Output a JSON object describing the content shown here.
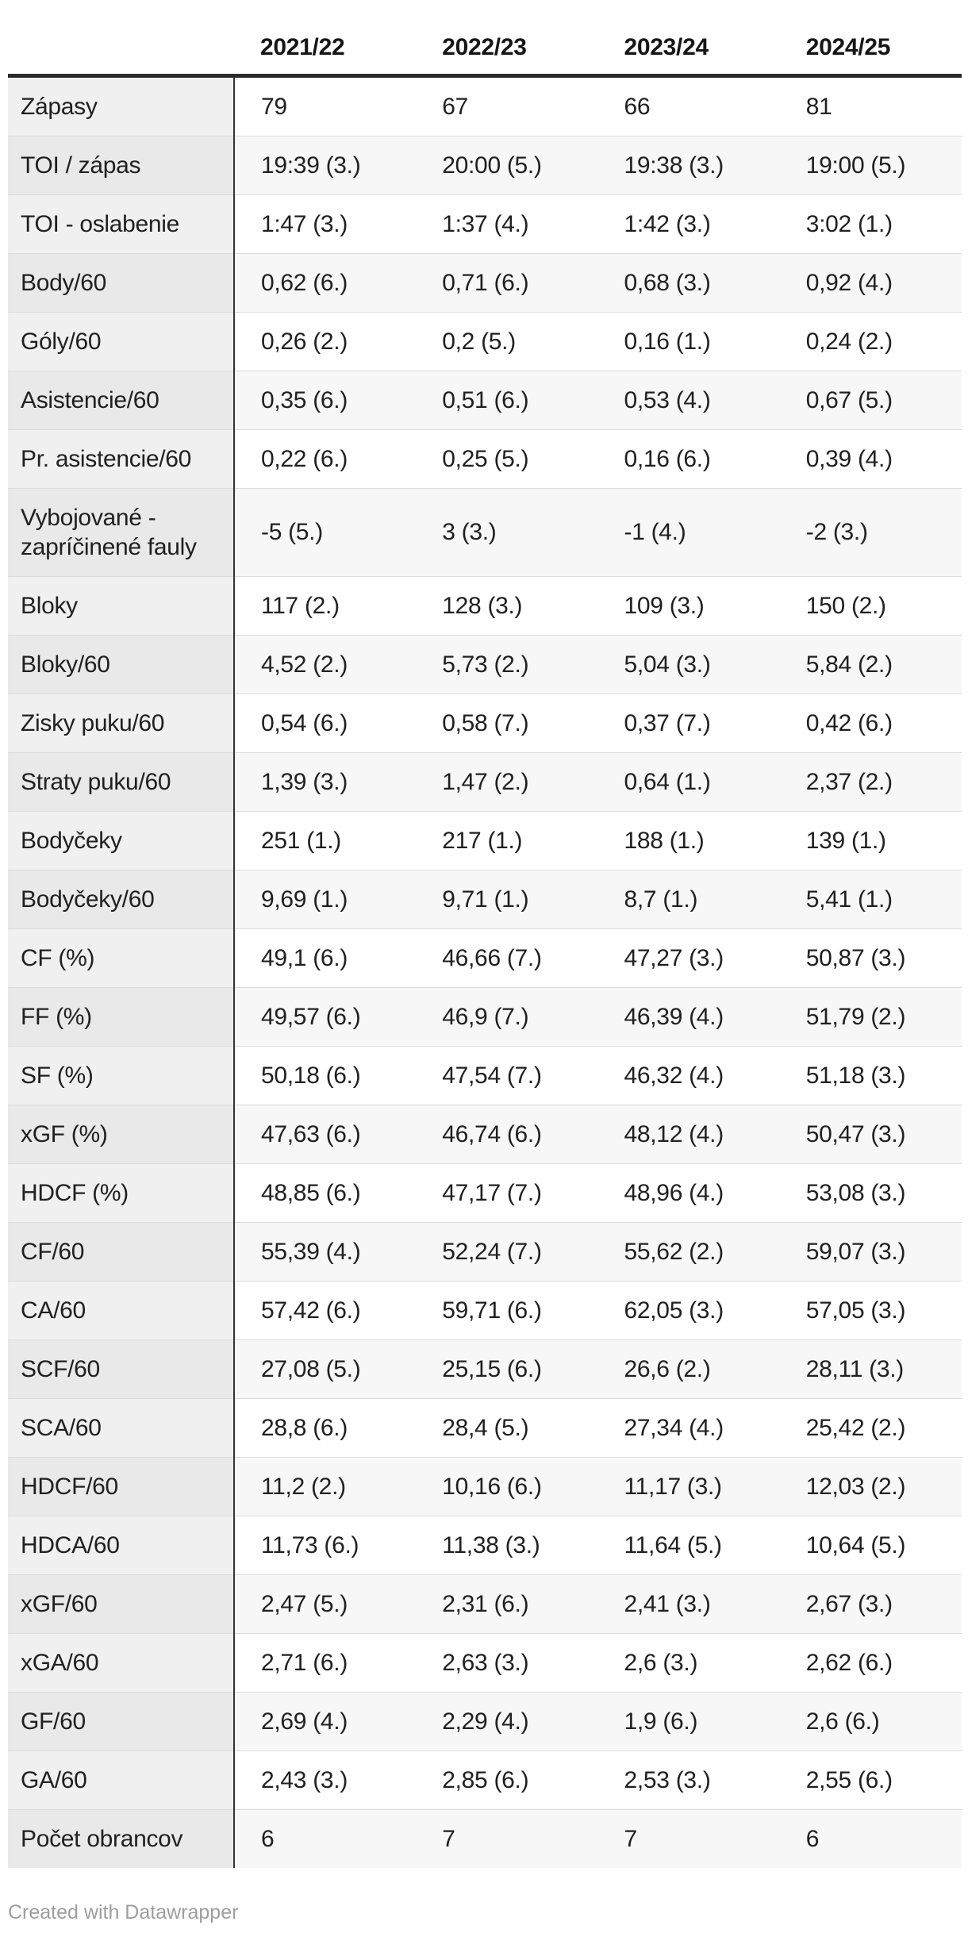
{
  "chart_data": {
    "type": "table",
    "title": "",
    "columns": [
      "2021/22",
      "2022/23",
      "2023/24",
      "2024/25"
    ],
    "rows": [
      {
        "label": "Zápasy",
        "values": [
          "79",
          "67",
          "66",
          "81"
        ]
      },
      {
        "label": "TOI / zápas",
        "values": [
          "19:39 (3.)",
          "20:00 (5.)",
          "19:38 (3.)",
          "19:00 (5.)"
        ]
      },
      {
        "label": "TOI - oslabenie",
        "values": [
          "1:47 (3.)",
          "1:37 (4.)",
          "1:42 (3.)",
          "3:02 (1.)"
        ]
      },
      {
        "label": "Body/60",
        "values": [
          "0,62 (6.)",
          "0,71 (6.)",
          "0,68 (3.)",
          "0,92 (4.)"
        ]
      },
      {
        "label": "Góly/60",
        "values": [
          "0,26 (2.)",
          "0,2 (5.)",
          "0,16 (1.)",
          "0,24 (2.)"
        ]
      },
      {
        "label": "Asistencie/60",
        "values": [
          "0,35 (6.)",
          "0,51 (6.)",
          "0,53 (4.)",
          "0,67 (5.)"
        ]
      },
      {
        "label": "Pr. asistencie/60",
        "values": [
          "0,22 (6.)",
          "0,25 (5.)",
          "0,16 (6.)",
          "0,39 (4.)"
        ]
      },
      {
        "label": "Vybojované - zapríčinené fauly",
        "values": [
          "-5 (5.)",
          "3 (3.)",
          "-1 (4.)",
          "-2 (3.)"
        ]
      },
      {
        "label": "Bloky",
        "values": [
          "117 (2.)",
          "128 (3.)",
          "109 (3.)",
          "150 (2.)"
        ]
      },
      {
        "label": "Bloky/60",
        "values": [
          "4,52 (2.)",
          "5,73 (2.)",
          "5,04 (3.)",
          "5,84 (2.)"
        ]
      },
      {
        "label": "Zisky puku/60",
        "values": [
          "0,54 (6.)",
          "0,58 (7.)",
          "0,37 (7.)",
          "0,42 (6.)"
        ]
      },
      {
        "label": "Straty puku/60",
        "values": [
          "1,39 (3.)",
          "1,47 (2.)",
          "0,64 (1.)",
          "2,37 (2.)"
        ]
      },
      {
        "label": "Bodyčeky",
        "values": [
          "251 (1.)",
          "217 (1.)",
          "188 (1.)",
          "139 (1.)"
        ]
      },
      {
        "label": "Bodyčeky/60",
        "values": [
          "9,69 (1.)",
          "9,71 (1.)",
          "8,7 (1.)",
          "5,41 (1.)"
        ]
      },
      {
        "label": "CF (%)",
        "values": [
          "49,1 (6.)",
          "46,66 (7.)",
          "47,27 (3.)",
          "50,87 (3.)"
        ]
      },
      {
        "label": "FF (%)",
        "values": [
          "49,57 (6.)",
          "46,9 (7.)",
          "46,39 (4.)",
          "51,79 (2.)"
        ]
      },
      {
        "label": "SF (%)",
        "values": [
          "50,18 (6.)",
          "47,54 (7.)",
          "46,32 (4.)",
          "51,18 (3.)"
        ]
      },
      {
        "label": "xGF (%)",
        "values": [
          "47,63 (6.)",
          "46,74 (6.)",
          "48,12 (4.)",
          "50,47 (3.)"
        ]
      },
      {
        "label": "HDCF (%)",
        "values": [
          "48,85 (6.)",
          "47,17 (7.)",
          "48,96 (4.)",
          "53,08 (3.)"
        ]
      },
      {
        "label": "CF/60",
        "values": [
          "55,39 (4.)",
          "52,24 (7.)",
          "55,62 (2.)",
          "59,07 (3.)"
        ]
      },
      {
        "label": "CA/60",
        "values": [
          "57,42 (6.)",
          "59,71 (6.)",
          "62,05 (3.)",
          "57,05 (3.)"
        ]
      },
      {
        "label": "SCF/60",
        "values": [
          "27,08 (5.)",
          "25,15 (6.)",
          "26,6 (2.)",
          "28,11 (3.)"
        ]
      },
      {
        "label": "SCA/60",
        "values": [
          "28,8 (6.)",
          "28,4 (5.)",
          "27,34 (4.)",
          "25,42 (2.)"
        ]
      },
      {
        "label": "HDCF/60",
        "values": [
          "11,2 (2.)",
          "10,16 (6.)",
          "11,17 (3.)",
          "12,03 (2.)"
        ]
      },
      {
        "label": "HDCA/60",
        "values": [
          "11,73 (6.)",
          "11,38 (3.)",
          "11,64 (5.)",
          "10,64 (5.)"
        ]
      },
      {
        "label": "xGF/60",
        "values": [
          "2,47 (5.)",
          "2,31 (6.)",
          "2,41 (3.)",
          "2,67 (3.)"
        ]
      },
      {
        "label": "xGA/60",
        "values": [
          "2,71 (6.)",
          "2,63 (3.)",
          "2,6 (3.)",
          "2,62 (6.)"
        ]
      },
      {
        "label": "GF/60",
        "values": [
          "2,69 (4.)",
          "2,29 (4.)",
          "1,9 (6.)",
          "2,6 (6.)"
        ]
      },
      {
        "label": "GA/60",
        "values": [
          "2,43 (3.)",
          "2,85 (6.)",
          "2,53 (3.)",
          "2,55 (6.)"
        ]
      },
      {
        "label": "Počet obrancov",
        "values": [
          "6",
          "7",
          "7",
          "6"
        ]
      }
    ],
    "layout_hints": {
      "striped_rows": "even rows shaded",
      "first_column_highlighted": true,
      "header_border": "thick dark rule below season headers",
      "value_format": "value (rank.)"
    }
  },
  "colors": {
    "row_stripe": "#f7f7f7",
    "label_column_bg": "#f0f0f0",
    "label_column_bg_striped": "#e9e9e9",
    "divider": "#dcdcdc",
    "dark_rule": "#2b2b2b",
    "text": "#202020",
    "credit_text": "#9e9e9e"
  },
  "footer": {
    "credit": "Created with Datawrapper"
  }
}
